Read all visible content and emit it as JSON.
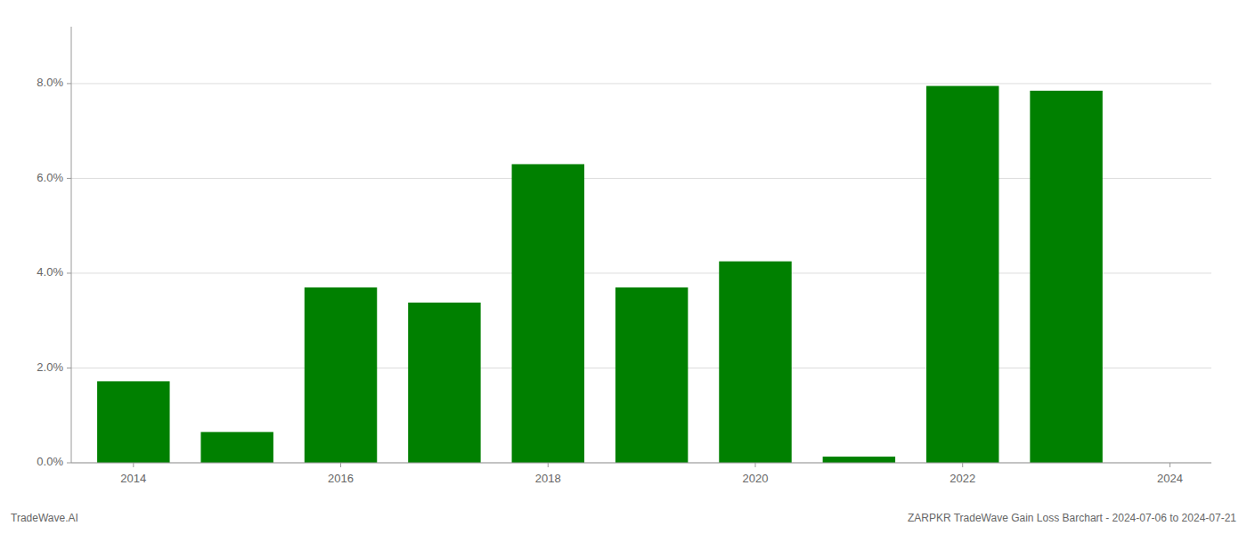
{
  "chart_data": {
    "type": "bar",
    "x": [
      2014,
      2015,
      2016,
      2017,
      2018,
      2019,
      2020,
      2021,
      2022,
      2023
    ],
    "values": [
      0.0172,
      0.0065,
      0.037,
      0.0338,
      0.063,
      0.037,
      0.0425,
      0.0013,
      0.0795,
      0.0785
    ],
    "color": "#008000",
    "xlim": [
      2013.4,
      2024.4
    ],
    "xticks": [
      2014,
      2016,
      2018,
      2020,
      2022,
      2024
    ],
    "ylim": [
      0,
      0.092
    ],
    "yticks": [
      {
        "value": 0.0,
        "label": "0.0%"
      },
      {
        "value": 0.02,
        "label": "2.0%"
      },
      {
        "value": 0.04,
        "label": "4.0%"
      },
      {
        "value": 0.06,
        "label": "6.0%"
      },
      {
        "value": 0.08,
        "label": "8.0%"
      }
    ],
    "grid": true,
    "annotations": [
      "TradeWave.AI",
      "ZARPKR TradeWave Gain Loss Barchart - 2024-07-06 to 2024-07-21"
    ]
  }
}
